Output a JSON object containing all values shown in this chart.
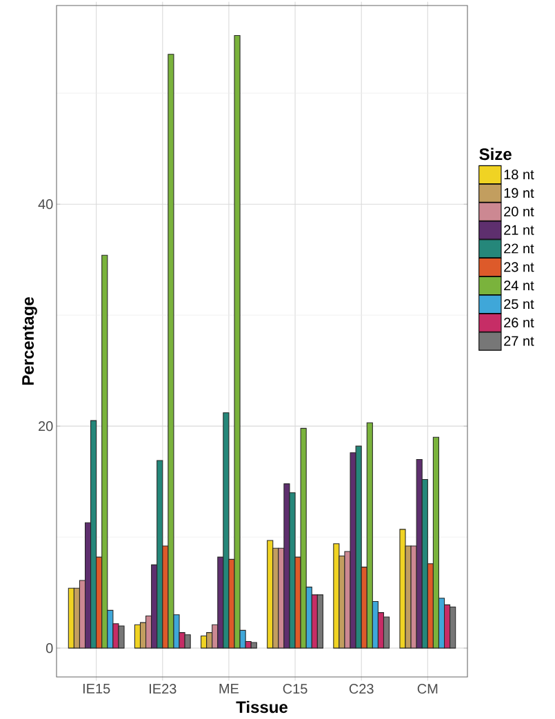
{
  "chart_data": {
    "type": "bar",
    "xlabel": "Tissue",
    "ylabel": "Percentage",
    "legend_title": "Size",
    "categories": [
      "IE15",
      "IE23",
      "ME",
      "C15",
      "C23",
      "CM"
    ],
    "series": [
      {
        "name": "18 nt",
        "color": "#f0d323",
        "values": [
          5.4,
          2.1,
          1.1,
          9.7,
          9.4,
          10.7
        ]
      },
      {
        "name": "19 nt",
        "color": "#c29e5f",
        "values": [
          5.4,
          2.3,
          1.4,
          9.0,
          8.3,
          9.2
        ]
      },
      {
        "name": "20 nt",
        "color": "#cc8892",
        "values": [
          6.1,
          2.9,
          2.1,
          9.0,
          8.7,
          9.2
        ]
      },
      {
        "name": "21 nt",
        "color": "#5e2f6e",
        "values": [
          11.3,
          7.5,
          8.2,
          14.8,
          17.6,
          17.0
        ]
      },
      {
        "name": "22 nt",
        "color": "#25877a",
        "values": [
          20.5,
          16.9,
          21.2,
          14.0,
          18.2,
          15.2
        ]
      },
      {
        "name": "23 nt",
        "color": "#dd5a2a",
        "values": [
          8.2,
          9.2,
          8.0,
          8.2,
          7.3,
          7.6
        ]
      },
      {
        "name": "24 nt",
        "color": "#7ab33c",
        "values": [
          35.4,
          53.5,
          55.2,
          19.8,
          20.3,
          19.0
        ]
      },
      {
        "name": "25 nt",
        "color": "#3fa7d9",
        "values": [
          3.4,
          3.0,
          1.6,
          5.5,
          4.2,
          4.5
        ]
      },
      {
        "name": "26 nt",
        "color": "#c62d66",
        "values": [
          2.2,
          1.4,
          0.6,
          4.8,
          3.2,
          3.9
        ]
      },
      {
        "name": "27 nt",
        "color": "#777777",
        "values": [
          2.0,
          1.2,
          0.5,
          4.8,
          2.8,
          3.7
        ]
      }
    ],
    "ylim": [
      -2.6,
      57.9
    ],
    "yticks": [
      0,
      {
        "value": 10,
        "label": null
      },
      20,
      {
        "value": 30,
        "label": null
      },
      40,
      {
        "value": 50,
        "label": null
      }
    ],
    "grid": true,
    "legend": "right"
  }
}
